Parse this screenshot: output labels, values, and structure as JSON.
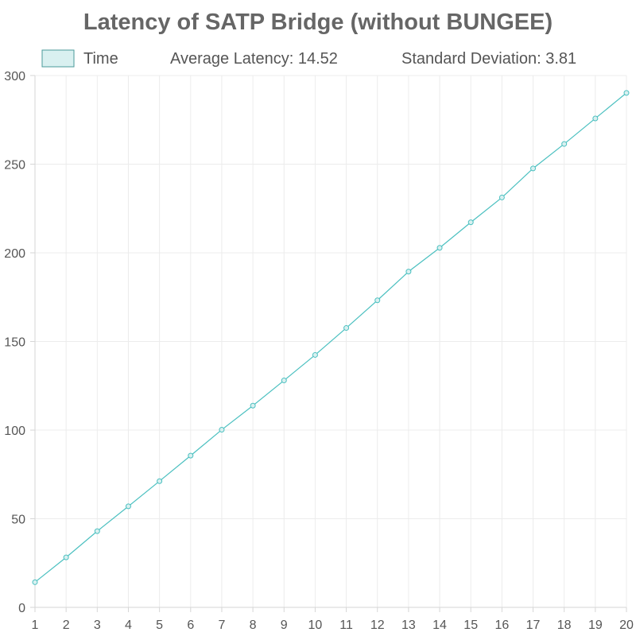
{
  "chart_data": {
    "type": "line",
    "title": "Latency of SATP Bridge (without BUNGEE)",
    "xlabel": "",
    "ylabel": "",
    "x": [
      1,
      2,
      3,
      4,
      5,
      6,
      7,
      8,
      9,
      10,
      11,
      12,
      13,
      14,
      15,
      16,
      17,
      18,
      19,
      20
    ],
    "x_ticks": [
      "1",
      "2",
      "3",
      "4",
      "5",
      "6",
      "7",
      "8",
      "9",
      "10",
      "11",
      "12",
      "13",
      "14",
      "15",
      "16",
      "17",
      "18",
      "19",
      "20"
    ],
    "ylim": [
      0,
      300
    ],
    "y_ticks": [
      "0",
      "50",
      "100",
      "150",
      "200",
      "250",
      "300"
    ],
    "y_tick_values": [
      0,
      50,
      100,
      150,
      200,
      250,
      300
    ],
    "grid": true,
    "legend_position": "top-left",
    "series": [
      {
        "name": "Time",
        "color": "#4bc0c0",
        "fill_color": "#d9f0f0",
        "values": [
          14.2,
          28.2,
          43.0,
          57.0,
          71.2,
          85.6,
          100.2,
          113.8,
          128.0,
          142.4,
          157.6,
          173.2,
          189.4,
          202.8,
          217.2,
          231.2,
          247.6,
          261.4,
          275.8,
          290.2
        ]
      }
    ],
    "annotations": {
      "average": "Average Latency: 14.52",
      "stddev": "Standard Deviation: 3.81"
    }
  }
}
